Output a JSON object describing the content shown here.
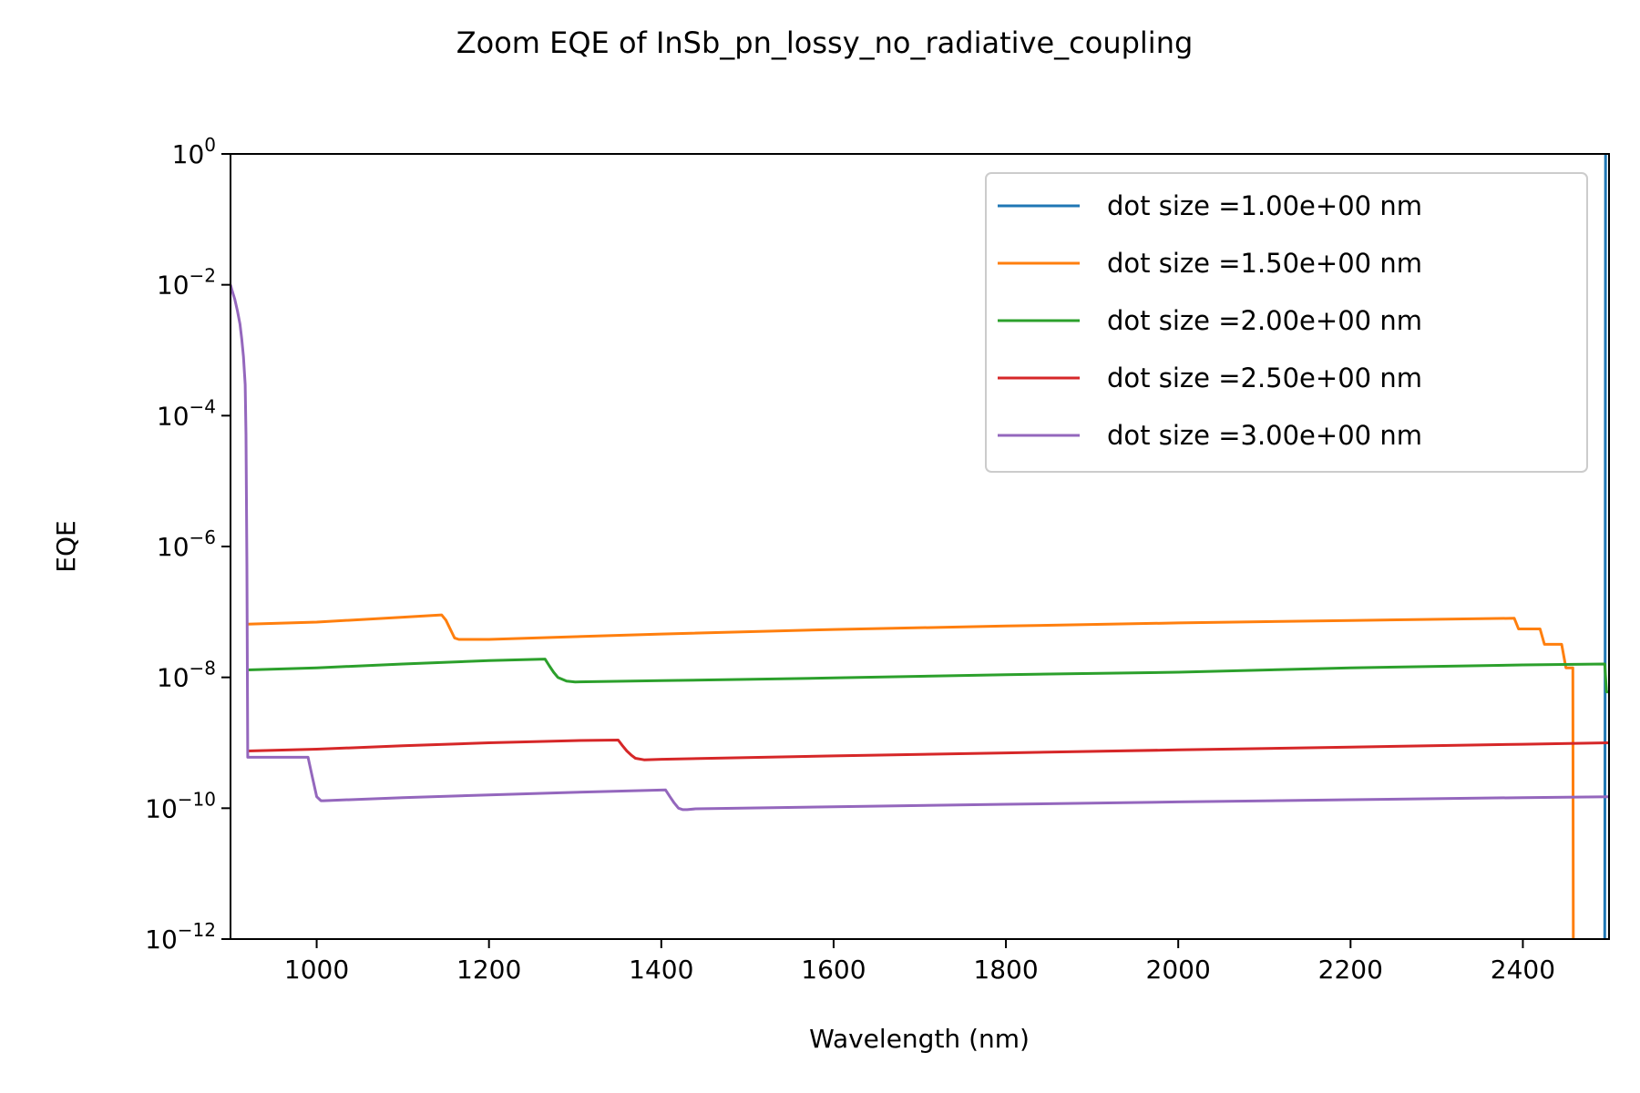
{
  "chart_data": {
    "type": "line",
    "title": "Zoom EQE of InSb_pn_lossy_no_radiative_coupling",
    "xlabel": "Wavelength (nm)",
    "ylabel": "EQE",
    "xlim": [
      900,
      2500
    ],
    "ylim": [
      1e-12,
      1
    ],
    "yscale": "log",
    "x_ticks": [
      1000,
      1200,
      1400,
      1600,
      1800,
      2000,
      2200,
      2400
    ],
    "x_tick_labels": [
      "1000",
      "1200",
      "1400",
      "1600",
      "1800",
      "2000",
      "2200",
      "2400"
    ],
    "y_ticks": [
      1e-12,
      1e-10,
      1e-08,
      1e-06,
      0.0001,
      0.01,
      1
    ],
    "y_tick_labels": [
      {
        "base": "10",
        "exp": "−12"
      },
      {
        "base": "10",
        "exp": "−10"
      },
      {
        "base": "10",
        "exp": "−8"
      },
      {
        "base": "10",
        "exp": "−6"
      },
      {
        "base": "10",
        "exp": "−4"
      },
      {
        "base": "10",
        "exp": "−2"
      },
      {
        "base": "10",
        "exp": "0"
      }
    ],
    "grid": false,
    "legend_position": "top-right",
    "series": [
      {
        "name": "dot size =1.00e+00 nm",
        "color": "#1f77b4",
        "x": [
          2495,
          2495.5,
          2496
        ],
        "y": [
          1e-12,
          1e-08,
          1
        ]
      },
      {
        "name": "dot size =1.50e+00 nm",
        "color": "#ff7f0e",
        "x": [
          920,
          1000,
          1100,
          1145,
          1150,
          1155,
          1160,
          1165,
          1200,
          1400,
          1600,
          1800,
          2000,
          2200,
          2390,
          2395,
          2405,
          2420,
          2425,
          2445,
          2450,
          2458,
          2458.5
        ],
        "y": [
          6.5e-08,
          7e-08,
          8.3e-08,
          9e-08,
          7.5e-08,
          5.5e-08,
          4e-08,
          3.8e-08,
          3.8e-08,
          4.6e-08,
          5.4e-08,
          6.1e-08,
          6.8e-08,
          7.4e-08,
          8e-08,
          5.5e-08,
          5.5e-08,
          5.5e-08,
          3.2e-08,
          3.2e-08,
          1.4e-08,
          1.4e-08,
          1e-12
        ]
      },
      {
        "name": "dot size =2.00e+00 nm",
        "color": "#2ca02c",
        "x": [
          920,
          1000,
          1100,
          1200,
          1265,
          1270,
          1275,
          1280,
          1290,
          1300,
          1400,
          1600,
          1800,
          2000,
          2200,
          2400,
          2495,
          2497,
          2500
        ],
        "y": [
          1.3e-08,
          1.4e-08,
          1.6e-08,
          1.8e-08,
          1.9e-08,
          1.5e-08,
          1.2e-08,
          1e-08,
          8.8e-09,
          8.5e-09,
          8.9e-09,
          9.8e-09,
          1.1e-08,
          1.2e-08,
          1.4e-08,
          1.55e-08,
          1.6e-08,
          6e-09,
          6e-09
        ]
      },
      {
        "name": "dot size =2.50e+00 nm",
        "color": "#d62728",
        "x": [
          920,
          1000,
          1100,
          1200,
          1300,
          1350,
          1355,
          1360,
          1365,
          1370,
          1380,
          1400,
          1600,
          1800,
          2000,
          2200,
          2400,
          2500
        ],
        "y": [
          7.5e-10,
          8e-10,
          9e-10,
          1e-09,
          1.08e-09,
          1.1e-09,
          9e-10,
          7.5e-10,
          6.5e-10,
          5.8e-10,
          5.5e-10,
          5.6e-10,
          6.3e-10,
          7e-10,
          7.8e-10,
          8.6e-10,
          9.5e-10,
          1e-09
        ]
      },
      {
        "name": "dot size =3.00e+00 nm",
        "color": "#9467bd",
        "x": [
          900,
          902,
          905,
          908,
          911,
          913,
          915,
          917,
          918,
          919,
          920,
          960,
          990,
          995,
          1000,
          1005,
          1008,
          1100,
          1200,
          1300,
          1405,
          1410,
          1415,
          1420,
          1425,
          1430,
          1440,
          1600,
          1800,
          2000,
          2200,
          2400,
          2500
        ],
        "y": [
          0.01,
          0.008,
          0.006,
          0.004,
          0.0025,
          0.0015,
          0.0008,
          0.0003,
          5e-05,
          5e-07,
          6e-10,
          6e-10,
          6e-10,
          3e-10,
          1.5e-10,
          1.3e-10,
          1.3e-10,
          1.45e-10,
          1.6e-10,
          1.75e-10,
          1.9e-10,
          1.5e-10,
          1.2e-10,
          1e-10,
          9.5e-11,
          9.5e-11,
          9.8e-11,
          1.05e-10,
          1.15e-10,
          1.25e-10,
          1.35e-10,
          1.45e-10,
          1.5e-10
        ]
      }
    ]
  }
}
